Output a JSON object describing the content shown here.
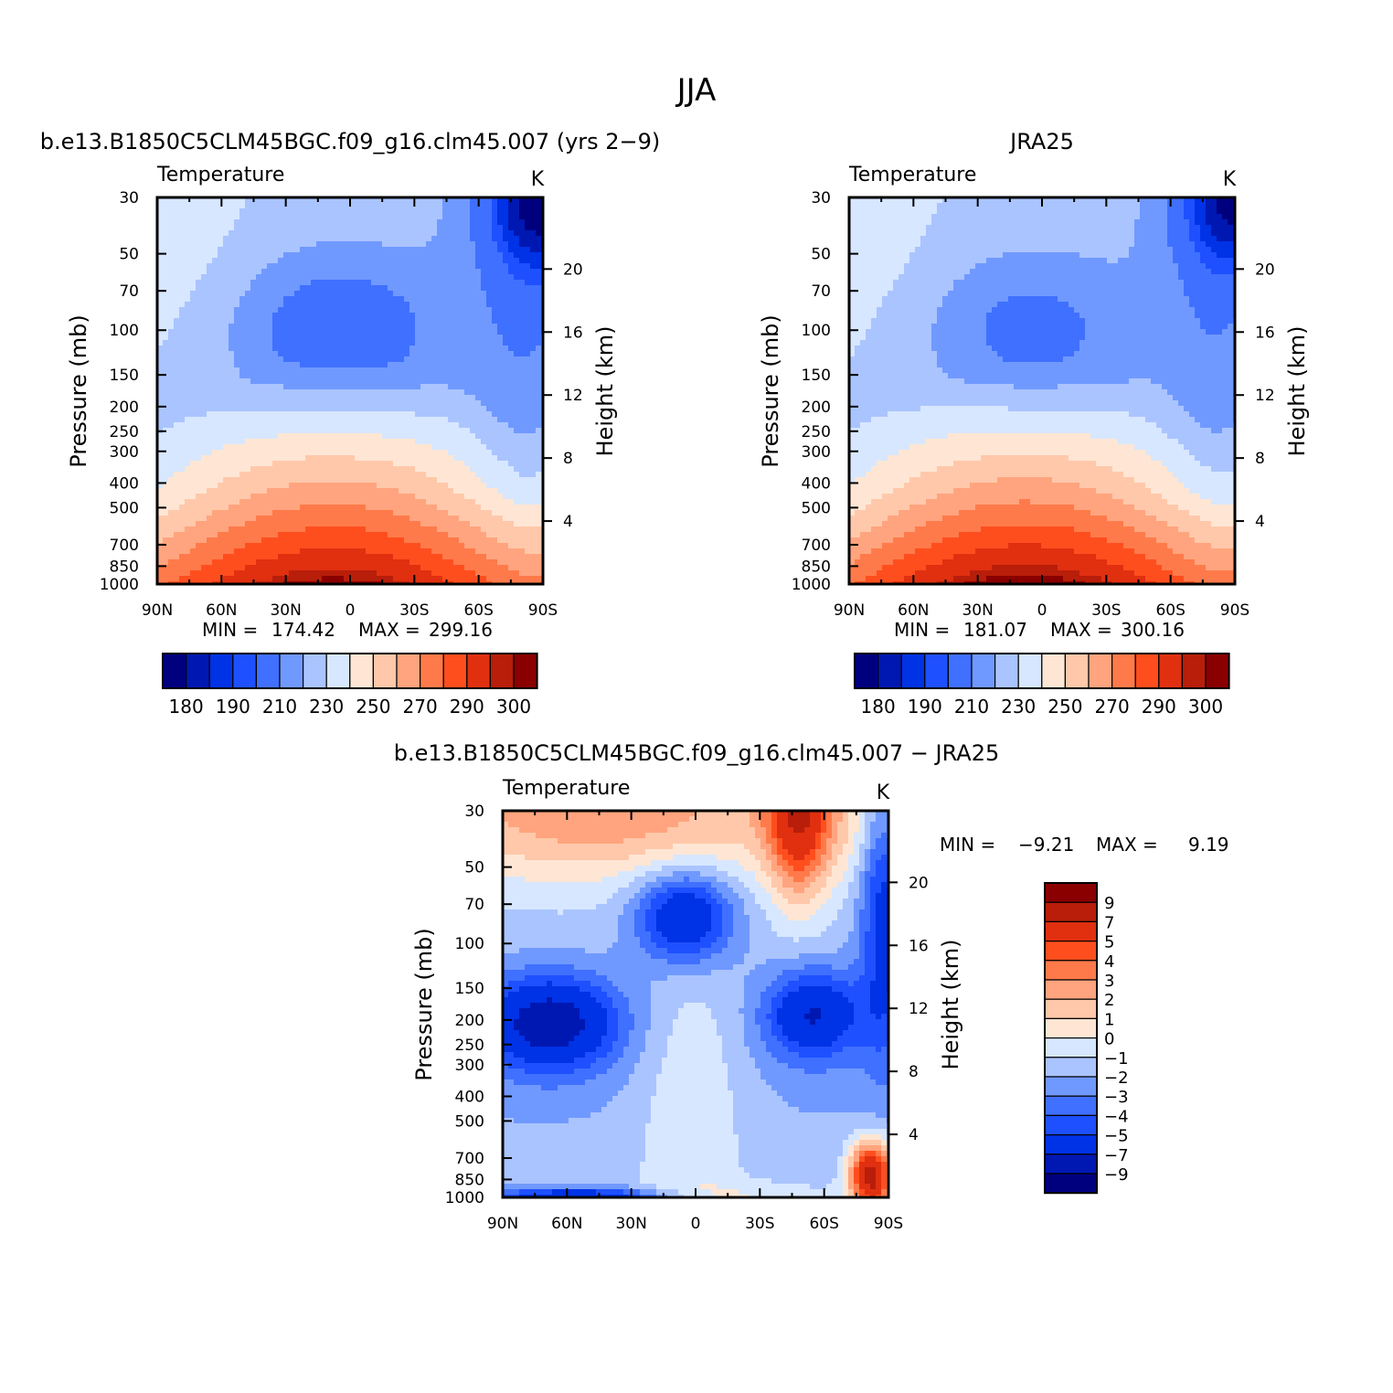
{
  "figure": {
    "title": "JJA"
  },
  "chart_data": [
    {
      "type": "heatmap",
      "id": "model",
      "title": "b.e13.B1850C5CLM45BGC.f09_g16.clm45.007 (yrs 2−9)",
      "left_string": "Temperature",
      "right_string": "K",
      "ylabel": "Pressure (mb)",
      "ylabel_right": "Height (km)",
      "x_ticks": [
        "90N",
        "60N",
        "30N",
        "0",
        "30S",
        "60S",
        "90S"
      ],
      "x_range": [
        90,
        -90
      ],
      "y_ticks": [
        30,
        50,
        70,
        100,
        150,
        200,
        250,
        300,
        400,
        500,
        700,
        850,
        1000
      ],
      "y_range": [
        30,
        1000
      ],
      "height_ticks": [
        20,
        16,
        12,
        8,
        4
      ],
      "stats": {
        "min_label": "MIN =",
        "min": "174.42",
        "max_label": "MAX =",
        "max": "299.16"
      },
      "contour_levels": [
        175,
        180,
        185,
        190,
        200,
        210,
        220,
        230,
        240,
        250,
        260,
        270,
        280,
        290,
        295,
        300
      ],
      "colorbar_labels": [
        "180",
        "190",
        "210",
        "230",
        "250",
        "270",
        "290",
        "300"
      ],
      "field_params": {
        "cold_pole": "south",
        "pole_strength": 14,
        "trop_min": 196,
        "trop_dip": 8,
        "surface_max": 298,
        "cold_surface": 246
      }
    },
    {
      "type": "heatmap",
      "id": "obs",
      "title": "JRA25",
      "left_string": "Temperature",
      "right_string": "K",
      "ylabel": "Pressure (mb)",
      "ylabel_right": "Height (km)",
      "x_ticks": [
        "90N",
        "60N",
        "30N",
        "0",
        "30S",
        "60S",
        "90S"
      ],
      "x_range": [
        90,
        -90
      ],
      "y_ticks": [
        30,
        50,
        70,
        100,
        150,
        200,
        250,
        300,
        400,
        500,
        700,
        850,
        1000
      ],
      "y_range": [
        30,
        1000
      ],
      "height_ticks": [
        20,
        16,
        12,
        8,
        4
      ],
      "stats": {
        "min_label": "MIN =",
        "min": "181.07",
        "max_label": "MAX =",
        "max": "300.16"
      },
      "contour_levels": [
        175,
        180,
        185,
        190,
        200,
        210,
        220,
        230,
        240,
        250,
        260,
        270,
        280,
        290,
        295,
        300
      ],
      "colorbar_labels": [
        "180",
        "190",
        "210",
        "230",
        "250",
        "270",
        "290",
        "300"
      ],
      "field_params": {
        "cold_pole": "south",
        "pole_strength": 11,
        "trop_min": 199,
        "trop_dip": 5,
        "surface_max": 300,
        "cold_surface": 248
      }
    },
    {
      "type": "heatmap",
      "id": "diff",
      "title": "b.e13.B1850C5CLM45BGC.f09_g16.clm45.007 − JRA25",
      "left_string": "Temperature",
      "right_string": "K",
      "ylabel": "Pressure (mb)",
      "ylabel_right": "Height (km)",
      "x_ticks": [
        "90N",
        "60N",
        "30N",
        "0",
        "30S",
        "60S",
        "90S"
      ],
      "x_range": [
        90,
        -90
      ],
      "y_ticks": [
        30,
        50,
        70,
        100,
        150,
        200,
        250,
        300,
        400,
        500,
        700,
        850,
        1000
      ],
      "y_range": [
        30,
        1000
      ],
      "height_ticks": [
        20,
        16,
        12,
        8,
        4
      ],
      "stats": {
        "min_label": "MIN =",
        "min": "−9.21",
        "max_label": "MAX =",
        "max": "9.19"
      },
      "contour_levels": [
        -9,
        -7,
        -5,
        -4,
        -3,
        -2,
        -1,
        0,
        1,
        2,
        3,
        4,
        5,
        7,
        9
      ],
      "colorbar_labels": [
        "9",
        "7",
        "5",
        "4",
        "3",
        "2",
        "1",
        "0",
        "−1",
        "−2",
        "−3",
        "−4",
        "−5",
        "−7",
        "−9"
      ]
    }
  ],
  "palette": {
    "temperature": [
      "#00007f",
      "#0018b2",
      "#0032e6",
      "#1e50ff",
      "#4070ff",
      "#7099ff",
      "#aac4ff",
      "#d7e7ff",
      "#ffe6d4",
      "#ffc8aa",
      "#ffa47e",
      "#ff7a4a",
      "#ff4e1e",
      "#e03010",
      "#b81e0a",
      "#8a0000"
    ],
    "difference": [
      "#00007f",
      "#0018b2",
      "#0032e6",
      "#1e50ff",
      "#4070ff",
      "#7099ff",
      "#aac4ff",
      "#d7e7ff",
      "#ffe6d4",
      "#ffc8aa",
      "#ffa47e",
      "#ff7a4a",
      "#ff4e1e",
      "#e03010",
      "#b81e0a",
      "#8a0000"
    ]
  }
}
